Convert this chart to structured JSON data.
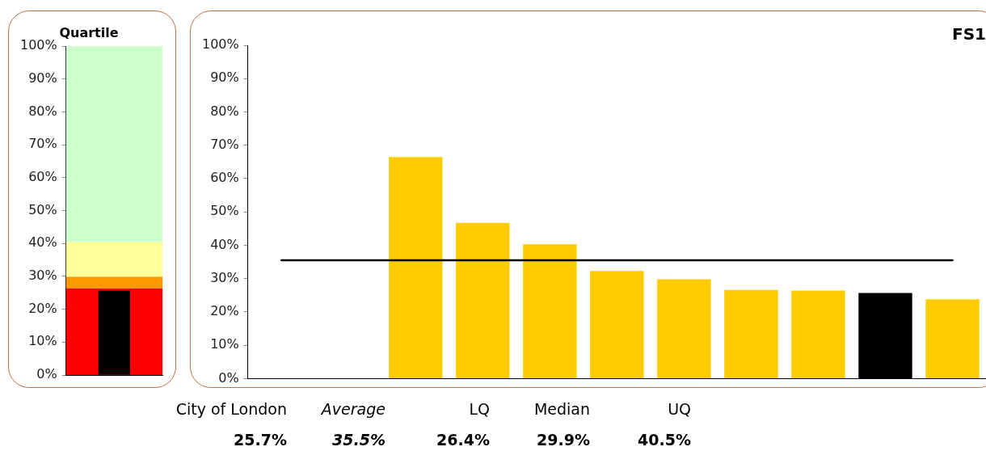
{
  "chart_data": [
    {
      "type": "bar",
      "title": "Quartile",
      "categories": [
        null
      ],
      "values": [
        25.7
      ],
      "color": "#000000",
      "bands": [
        {
          "axis": "y",
          "from": 0,
          "to": 26.4,
          "color": "#ff0000"
        },
        {
          "axis": "y",
          "from": 26.4,
          "to": 29.9,
          "color": "#ff9900"
        },
        {
          "axis": "y",
          "from": 29.9,
          "to": 40.5,
          "color": "#ffff99"
        },
        {
          "axis": "y",
          "from": 40.5,
          "to": 100,
          "color": "#ccffcc"
        }
      ],
      "ylim": [
        0,
        100
      ],
      "yticks": [
        {
          "value": 0,
          "label": "0%"
        },
        {
          "value": 10,
          "label": "10%"
        },
        {
          "value": 20,
          "label": "20%"
        },
        {
          "value": 30,
          "label": "30%"
        },
        {
          "value": 40,
          "label": "40%"
        },
        {
          "value": 50,
          "label": "50%"
        },
        {
          "value": 60,
          "label": "60%"
        },
        {
          "value": 70,
          "label": "70%"
        },
        {
          "value": 80,
          "label": "80%"
        },
        {
          "value": 90,
          "label": "90%"
        },
        {
          "value": 100,
          "label": "100%"
        }
      ],
      "tick_labels": "y"
    },
    {
      "type": "bar",
      "title": "FS1",
      "categories": [
        null,
        null,
        null,
        null,
        null,
        null,
        null,
        null,
        null,
        null,
        null
      ],
      "values": [
        null,
        null,
        66.5,
        46.7,
        40.3,
        32.3,
        29.8,
        26.6,
        26.4,
        25.7,
        23.8
      ],
      "colors": [
        "#ffcc00",
        "#ffcc00",
        "#ffcc00",
        "#ffcc00",
        "#ffcc00",
        "#ffcc00",
        "#ffcc00",
        "#ffcc00",
        "#ffcc00",
        "#000000",
        "#ffcc00"
      ],
      "ref_lines": [
        {
          "axis": "y",
          "value": 35.5,
          "color": "#000000"
        }
      ],
      "ylim": [
        0,
        100
      ],
      "yticks": [
        {
          "value": 0,
          "label": "0%"
        },
        {
          "value": 10,
          "label": "10%"
        },
        {
          "value": 20,
          "label": "20%"
        },
        {
          "value": 30,
          "label": "30%"
        },
        {
          "value": 40,
          "label": "40%"
        },
        {
          "value": 50,
          "label": "50%"
        },
        {
          "value": 60,
          "label": "60%"
        },
        {
          "value": 70,
          "label": "70%"
        },
        {
          "value": 80,
          "label": "80%"
        },
        {
          "value": 90,
          "label": "90%"
        },
        {
          "value": 100,
          "label": "100%"
        }
      ],
      "tick_labels": "y",
      "annotations": [
        "City of London",
        "Average",
        "LQ",
        "Median",
        "UQ",
        "25.7%",
        "35.5%",
        "26.4%",
        "29.9%",
        "40.5%"
      ]
    }
  ]
}
